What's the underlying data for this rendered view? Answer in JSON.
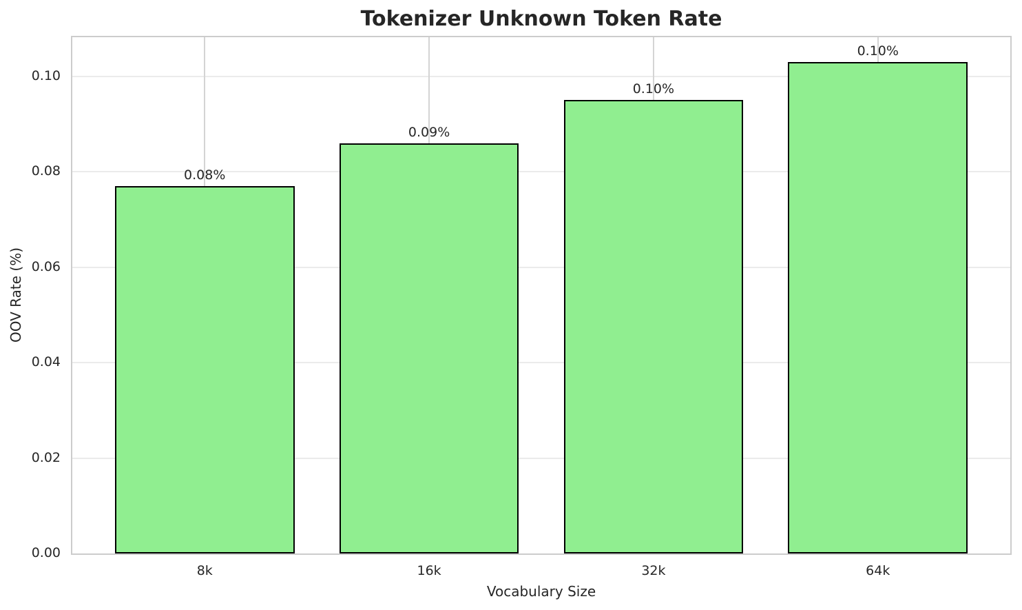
{
  "chart_data": {
    "type": "bar",
    "title": "Tokenizer Unknown Token Rate",
    "xlabel": "Vocabulary Size",
    "ylabel": "OOV Rate (%)",
    "categories": [
      "8k",
      "16k",
      "32k",
      "64k"
    ],
    "values": [
      0.077,
      0.086,
      0.095,
      0.103
    ],
    "bar_labels": [
      "0.08%",
      "0.09%",
      "0.10%",
      "0.10%"
    ],
    "ytick_values": [
      0.0,
      0.02,
      0.04,
      0.06,
      0.08,
      0.1
    ],
    "ytick_labels": [
      "0.00",
      "0.02",
      "0.04",
      "0.06",
      "0.08",
      "0.10"
    ],
    "ylim": [
      0,
      0.1082
    ],
    "bar_color": "#90EE90",
    "bar_edge_color": "#000000",
    "grid": true,
    "grid_color_horizontal": "#ebebeb",
    "grid_color_vertical": "#d4d4d4",
    "spine_color": "#cccccc",
    "text_color": "#262626",
    "legend": null
  }
}
